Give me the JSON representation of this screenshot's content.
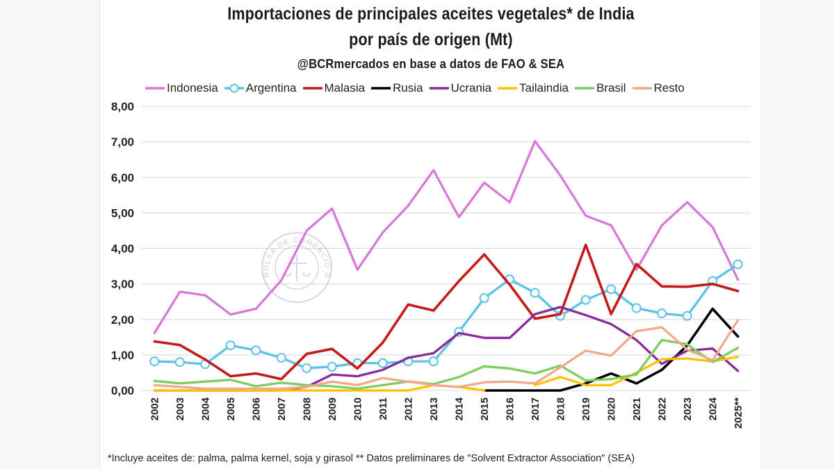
{
  "chart_data": {
    "type": "line",
    "title": "Importaciones de principales aceites vegetales* de India",
    "title_line2": "por país de origen (Mt)",
    "subtitle": "@BCRmercados en base a datos de FAO & SEA",
    "footnote": "*Incluye aceites de: palma, palma kernel, soja y girasol ** Datos preliminares de \"Solvent Extractor Association\" (SEA)",
    "watermark": "BOLSA DE COMERCIO DE ROSARIO",
    "ylim": [
      0,
      8
    ],
    "y_ticks": [
      "0,00",
      "1,00",
      "2,00",
      "3,00",
      "4,00",
      "5,00",
      "6,00",
      "7,00",
      "8,00"
    ],
    "categories": [
      "2002",
      "2003",
      "2004",
      "2005",
      "2006",
      "2007",
      "2008",
      "2009",
      "2010",
      "2011",
      "2012",
      "2013",
      "2014",
      "2015",
      "2016",
      "2017",
      "2018",
      "2019",
      "2020",
      "2021",
      "2022",
      "2023",
      "2024",
      "2025**"
    ],
    "series": [
      {
        "name": "Indonesia",
        "color": "#d878d8",
        "marker": false,
        "values": [
          1.62,
          2.78,
          2.68,
          2.14,
          2.3,
          3.1,
          4.5,
          5.12,
          3.4,
          4.45,
          5.2,
          6.2,
          4.88,
          5.85,
          5.3,
          7.02,
          6.05,
          4.92,
          4.65,
          3.4,
          4.65,
          5.3,
          4.6,
          3.12
        ]
      },
      {
        "name": "Argentina",
        "color": "#5bc2e8",
        "marker": true,
        "values": [
          0.82,
          0.8,
          0.74,
          1.27,
          1.13,
          0.92,
          0.63,
          0.67,
          0.77,
          0.77,
          0.82,
          0.82,
          1.65,
          2.6,
          3.13,
          2.75,
          2.1,
          2.55,
          2.85,
          2.32,
          2.17,
          2.1,
          3.08,
          3.55
        ]
      },
      {
        "name": "Malasia",
        "color": "#c41a1a",
        "marker": false,
        "values": [
          1.38,
          1.28,
          0.87,
          0.4,
          0.48,
          0.32,
          1.03,
          1.17,
          0.62,
          1.35,
          2.42,
          2.25,
          3.08,
          3.83,
          2.98,
          2.02,
          2.15,
          4.1,
          2.15,
          3.56,
          2.93,
          2.92,
          3.0,
          2.8
        ]
      },
      {
        "name": "Rusia",
        "color": "#000000",
        "marker": false,
        "values": [
          null,
          null,
          null,
          null,
          null,
          null,
          null,
          null,
          null,
          null,
          null,
          null,
          null,
          0.0,
          0.0,
          0.0,
          0.0,
          0.2,
          0.48,
          0.2,
          0.58,
          1.27,
          2.3,
          1.52
        ]
      },
      {
        "name": "Ucrania",
        "color": "#8a2a9a",
        "marker": false,
        "values": [
          0.0,
          0.0,
          0.0,
          0.0,
          0.0,
          0.0,
          0.1,
          0.45,
          0.4,
          0.58,
          0.92,
          1.05,
          1.62,
          1.48,
          1.48,
          2.15,
          2.35,
          2.12,
          1.87,
          1.42,
          0.75,
          1.12,
          1.18,
          0.55
        ]
      },
      {
        "name": "Tailaindia",
        "color": "#ffc000",
        "marker": false,
        "values": [
          0.0,
          0.0,
          0.0,
          0.0,
          0.0,
          0.0,
          0.0,
          0.0,
          0.0,
          0.0,
          0.0,
          0.15,
          0.1,
          0.0,
          null,
          0.15,
          0.38,
          0.15,
          0.15,
          0.5,
          0.88,
          0.9,
          0.82,
          0.95
        ]
      },
      {
        "name": "Brasil",
        "color": "#7ccf5e",
        "marker": false,
        "values": [
          0.27,
          0.2,
          0.25,
          0.3,
          0.12,
          0.22,
          0.15,
          0.12,
          0.05,
          0.15,
          0.25,
          0.18,
          0.38,
          0.68,
          0.62,
          0.48,
          0.7,
          0.28,
          0.32,
          0.45,
          1.42,
          1.3,
          0.8,
          1.2
        ]
      },
      {
        "name": "Resto",
        "color": "#f2a98a",
        "marker": false,
        "values": [
          0.15,
          0.1,
          0.05,
          0.05,
          0.05,
          0.05,
          0.1,
          0.25,
          0.15,
          0.35,
          0.25,
          0.15,
          0.1,
          0.23,
          0.25,
          0.2,
          0.65,
          1.12,
          0.98,
          1.67,
          1.78,
          1.15,
          0.85,
          1.98
        ]
      }
    ]
  }
}
